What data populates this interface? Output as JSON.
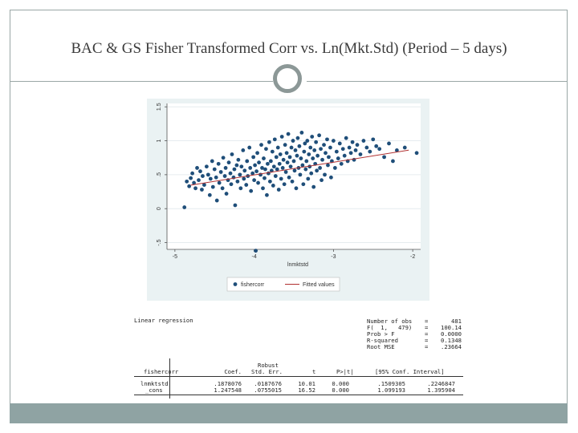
{
  "slide": {
    "title": "BAC & GS Fisher Transformed Corr vs. Ln(Mkt.Std) (Period – 5 days)"
  },
  "colors": {
    "frame": "#9aa7a6",
    "footer": "#8fa3a3",
    "dots": "#1f4e79",
    "fit_line": "#b03030"
  },
  "chart_data": {
    "type": "scatter",
    "xlabel": "lnmktstd",
    "ylabel": "",
    "xlim": [
      -5.1,
      -1.9
    ],
    "ylim": [
      -0.6,
      1.55
    ],
    "x_ticks": [
      "-5",
      "-4",
      "-3",
      "-2"
    ],
    "y_ticks": [
      "-.5",
      "0",
      ".5",
      "1",
      "1.5"
    ],
    "grid": true,
    "legend": "bottom",
    "series": [
      {
        "name": "fishercorr",
        "points": [
          [
            -4.88,
            0.02
          ],
          [
            -4.85,
            0.4
          ],
          [
            -4.82,
            0.33
          ],
          [
            -4.8,
            0.45
          ],
          [
            -4.78,
            0.52
          ],
          [
            -4.76,
            0.38
          ],
          [
            -4.74,
            0.3
          ],
          [
            -4.72,
            0.6
          ],
          [
            -4.7,
            0.42
          ],
          [
            -4.68,
            0.55
          ],
          [
            -4.66,
            0.28
          ],
          [
            -4.65,
            0.48
          ],
          [
            -4.63,
            0.35
          ],
          [
            -4.6,
            0.62
          ],
          [
            -4.58,
            0.5
          ],
          [
            -4.56,
            0.2
          ],
          [
            -4.55,
            0.44
          ],
          [
            -4.53,
            0.7
          ],
          [
            -4.52,
            0.32
          ],
          [
            -4.5,
            0.58
          ],
          [
            -4.48,
            0.46
          ],
          [
            -4.47,
            0.12
          ],
          [
            -4.45,
            0.66
          ],
          [
            -4.44,
            0.38
          ],
          [
            -4.42,
            0.54
          ],
          [
            -4.4,
            0.3
          ],
          [
            -4.39,
            0.75
          ],
          [
            -4.37,
            0.48
          ],
          [
            -4.36,
            0.6
          ],
          [
            -4.35,
            0.22
          ],
          [
            -4.33,
            0.42
          ],
          [
            -4.32,
            0.68
          ],
          [
            -4.3,
            0.52
          ],
          [
            -4.29,
            0.36
          ],
          [
            -4.28,
            0.8
          ],
          [
            -4.26,
            0.46
          ],
          [
            -4.25,
            0.58
          ],
          [
            -4.24,
            0.05
          ],
          [
            -4.22,
            0.64
          ],
          [
            -4.21,
            0.4
          ],
          [
            -4.2,
            0.72
          ],
          [
            -4.18,
            0.5
          ],
          [
            -4.17,
            0.3
          ],
          [
            -4.16,
            0.62
          ],
          [
            -4.14,
            0.86
          ],
          [
            -4.13,
            0.44
          ],
          [
            -4.12,
            0.56
          ],
          [
            -4.1,
            0.35
          ],
          [
            -4.09,
            0.7
          ],
          [
            -4.08,
            0.48
          ],
          [
            -4.06,
            0.9
          ],
          [
            -4.05,
            0.6
          ],
          [
            -4.04,
            0.26
          ],
          [
            -4.02,
            0.52
          ],
          [
            -4.01,
            0.76
          ],
          [
            -4.0,
            0.42
          ],
          [
            -3.99,
            0.64
          ],
          [
            -3.98,
            -0.62
          ],
          [
            -3.97,
            0.55
          ],
          [
            -3.96,
            0.82
          ],
          [
            -3.95,
            0.38
          ],
          [
            -3.94,
            0.68
          ],
          [
            -3.92,
            0.5
          ],
          [
            -3.91,
            0.94
          ],
          [
            -3.9,
            0.6
          ],
          [
            -3.89,
            0.3
          ],
          [
            -3.88,
            0.74
          ],
          [
            -3.87,
            0.45
          ],
          [
            -3.86,
            0.58
          ],
          [
            -3.85,
            0.88
          ],
          [
            -3.84,
            0.2
          ],
          [
            -3.83,
            0.66
          ],
          [
            -3.82,
            0.52
          ],
          [
            -3.81,
            0.98
          ],
          [
            -3.8,
            0.4
          ],
          [
            -3.79,
            0.7
          ],
          [
            -3.78,
            0.56
          ],
          [
            -3.77,
            0.84
          ],
          [
            -3.76,
            0.34
          ],
          [
            -3.75,
            0.62
          ],
          [
            -3.74,
            1.02
          ],
          [
            -3.73,
            0.48
          ],
          [
            -3.72,
            0.76
          ],
          [
            -3.71,
            0.58
          ],
          [
            -3.7,
            0.9
          ],
          [
            -3.69,
            0.28
          ],
          [
            -3.68,
            0.66
          ],
          [
            -3.67,
            0.8
          ],
          [
            -3.66,
            0.44
          ],
          [
            -3.65,
            1.06
          ],
          [
            -3.64,
            0.6
          ],
          [
            -3.63,
            0.72
          ],
          [
            -3.62,
            0.36
          ],
          [
            -3.61,
            0.94
          ],
          [
            -3.6,
            0.54
          ],
          [
            -3.59,
            0.82
          ],
          [
            -3.58,
            0.68
          ],
          [
            -3.57,
            1.1
          ],
          [
            -3.56,
            0.46
          ],
          [
            -3.55,
            0.76
          ],
          [
            -3.54,
            0.62
          ],
          [
            -3.53,
            0.9
          ],
          [
            -3.52,
            0.4
          ],
          [
            -3.51,
            1.0
          ],
          [
            -3.5,
            0.7
          ],
          [
            -3.49,
            0.56
          ],
          [
            -3.48,
            0.86
          ],
          [
            -3.47,
            0.3
          ],
          [
            -3.46,
            0.78
          ],
          [
            -3.45,
            1.04
          ],
          [
            -3.44,
            0.6
          ],
          [
            -3.43,
            0.92
          ],
          [
            -3.42,
            0.5
          ],
          [
            -3.41,
            0.74
          ],
          [
            -3.4,
            1.12
          ],
          [
            -3.39,
            0.64
          ],
          [
            -3.38,
            0.36
          ],
          [
            -3.37,
            0.84
          ],
          [
            -3.36,
            0.96
          ],
          [
            -3.35,
            0.58
          ],
          [
            -3.34,
            0.7
          ],
          [
            -3.33,
            1.0
          ],
          [
            -3.32,
            0.44
          ],
          [
            -3.31,
            0.8
          ],
          [
            -3.3,
            0.62
          ],
          [
            -3.29,
            0.9
          ],
          [
            -3.28,
            0.52
          ],
          [
            -3.27,
            1.06
          ],
          [
            -3.26,
            0.74
          ],
          [
            -3.25,
            0.32
          ],
          [
            -3.24,
            0.86
          ],
          [
            -3.23,
            0.66
          ],
          [
            -3.22,
            0.98
          ],
          [
            -3.21,
            0.56
          ],
          [
            -3.2,
            0.78
          ],
          [
            -3.18,
            1.08
          ],
          [
            -3.17,
            0.6
          ],
          [
            -3.16,
            0.88
          ],
          [
            -3.15,
            0.42
          ],
          [
            -3.14,
            0.72
          ],
          [
            -3.12,
            0.94
          ],
          [
            -3.11,
            0.5
          ],
          [
            -3.1,
            0.82
          ],
          [
            -3.08,
            1.02
          ],
          [
            -3.07,
            0.64
          ],
          [
            -3.06,
            0.76
          ],
          [
            -3.04,
            0.9
          ],
          [
            -3.03,
            0.46
          ],
          [
            -3.02,
            0.7
          ],
          [
            -3.0,
            1.0
          ],
          [
            -2.98,
            0.6
          ],
          [
            -2.96,
            0.84
          ],
          [
            -2.94,
            0.74
          ],
          [
            -2.92,
            0.96
          ],
          [
            -2.9,
            0.66
          ],
          [
            -2.88,
            0.88
          ],
          [
            -2.86,
            0.78
          ],
          [
            -2.84,
            1.04
          ],
          [
            -2.82,
            0.7
          ],
          [
            -2.8,
            0.9
          ],
          [
            -2.78,
            0.82
          ],
          [
            -2.76,
            0.98
          ],
          [
            -2.74,
            0.72
          ],
          [
            -2.72,
            0.86
          ],
          [
            -2.7,
            0.94
          ],
          [
            -2.66,
            0.8
          ],
          [
            -2.62,
            1.0
          ],
          [
            -2.58,
            0.9
          ],
          [
            -2.54,
            0.84
          ],
          [
            -2.5,
            1.02
          ],
          [
            -2.46,
            0.92
          ],
          [
            -2.42,
            0.88
          ],
          [
            -2.36,
            0.76
          ],
          [
            -2.3,
            0.96
          ],
          [
            -2.25,
            0.7
          ],
          [
            -2.2,
            0.86
          ],
          [
            -2.1,
            0.9
          ],
          [
            -1.95,
            0.82
          ]
        ]
      },
      {
        "name": "Fitted values",
        "intercept": 1.247548,
        "slope": 0.1878076,
        "x_range": [
          -4.8,
          -2.05
        ]
      }
    ]
  },
  "regression": {
    "title": "Linear regression",
    "stats": [
      {
        "label": "Number of obs",
        "sep": "=",
        "value": "481"
      },
      {
        "label": "F(  1,   479)",
        "sep": "=",
        "value": "100.14"
      },
      {
        "label": "Prob > F",
        "sep": "=",
        "value": "0.0000"
      },
      {
        "label": "R-squared",
        "sep": "=",
        "value": "0.1348"
      },
      {
        "label": "Root MSE",
        "sep": "=",
        "value": ".23664"
      }
    ],
    "header_robust": "Robust",
    "headers": [
      "fishercorr",
      "Coef.",
      "Std. Err.",
      "t",
      "P>|t|",
      "[95% Conf. Interval]"
    ],
    "rows": [
      [
        "lnmktstd",
        ".1878076",
        ".0187676",
        "10.01",
        "0.000",
        ".1509305",
        ".2246847"
      ],
      [
        "_cons",
        "1.247548",
        ".0755015",
        "16.52",
        "0.000",
        "1.099193",
        "1.395904"
      ]
    ]
  }
}
